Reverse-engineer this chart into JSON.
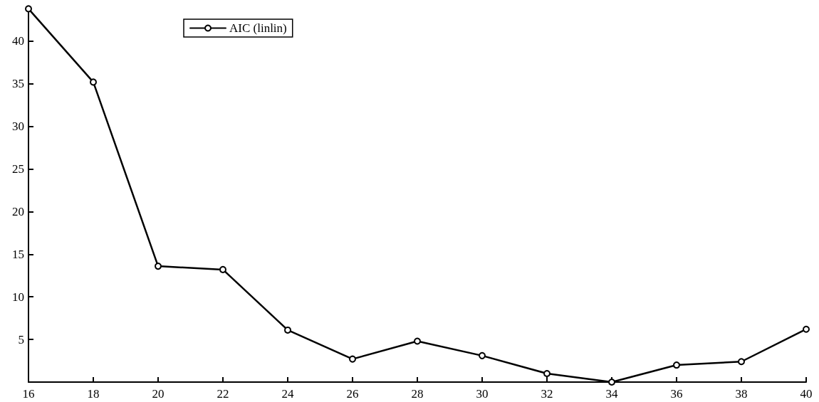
{
  "chart_data": {
    "type": "line",
    "x": [
      16,
      18,
      20,
      22,
      24,
      26,
      28,
      30,
      32,
      34,
      36,
      38,
      40
    ],
    "series": [
      {
        "name": "AIC (linlin)",
        "color": "#000000",
        "values": [
          43.8,
          35.2,
          13.6,
          13.2,
          6.1,
          2.7,
          4.8,
          3.1,
          1.0,
          0,
          2.0,
          2.4,
          6.2
        ]
      }
    ],
    "xlim": [
      16,
      40
    ],
    "xticks": [
      16,
      18,
      20,
      22,
      24,
      26,
      28,
      30,
      32,
      34,
      36,
      38,
      40
    ],
    "ylim": [
      0,
      44
    ],
    "yticks": [
      5,
      10,
      15,
      20,
      25,
      30,
      35,
      40
    ],
    "grid": false,
    "legend": "top left",
    "marker": "circle",
    "line_style": "solid"
  }
}
